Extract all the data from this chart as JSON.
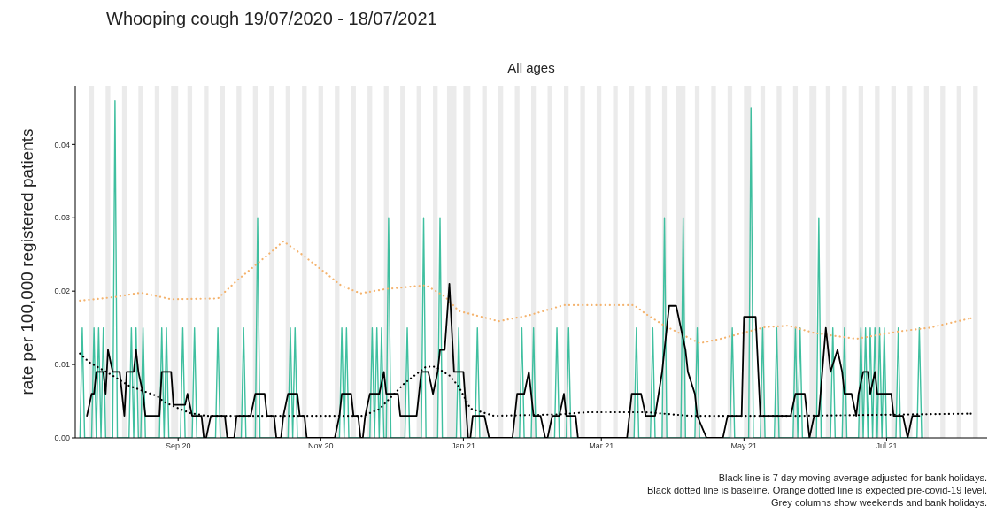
{
  "chart_data": {
    "type": "line",
    "title": "Whooping cough 19/07/2020 - 18/07/2021",
    "subtitle": "All ages",
    "ylabel": "rate per 100,000 registered patients",
    "annotations": [
      "Black line is 7 day moving average adjusted for bank holidays.",
      "Black dotted line is baseline. Orange dotted line is expected pre-covid-19 level.",
      "Grey columns show weekends and bank holidays."
    ],
    "xlim": [
      "2020-07-19",
      "2021-08-13"
    ],
    "xticks": [
      {
        "value": "2020-09-01",
        "label": "Sep 20"
      },
      {
        "value": "2020-11-01",
        "label": "Nov 20"
      },
      {
        "value": "2021-01-01",
        "label": "Jan 21"
      },
      {
        "value": "2021-03-01",
        "label": "Mar 21"
      },
      {
        "value": "2021-05-01",
        "label": "May 21"
      },
      {
        "value": "2021-07-01",
        "label": "Jul 21"
      }
    ],
    "ylim": [
      0,
      0.048
    ],
    "yticks": [
      {
        "value": 0,
        "label": "0.00"
      },
      {
        "value": 0.01,
        "label": "0.01"
      },
      {
        "value": 0.02,
        "label": "0.02"
      },
      {
        "value": 0.03,
        "label": "0.03"
      },
      {
        "value": 0.04,
        "label": "0.04"
      }
    ],
    "marker": "none",
    "series": [
      {
        "color": "#3fbf9f",
        "line_style": "solid",
        "x": [
          "2020-07-21",
          "2020-07-22",
          "2020-07-23",
          "2020-07-26",
          "2020-07-27",
          "2020-07-28",
          "2020-07-29",
          "2020-07-30",
          "2020-07-31",
          "2020-08-01",
          "2020-08-04",
          "2020-08-05",
          "2020-08-06",
          "2020-08-11",
          "2020-08-12",
          "2020-08-13",
          "2020-08-14",
          "2020-08-15",
          "2020-08-16",
          "2020-08-17",
          "2020-08-18",
          "2020-08-24",
          "2020-08-25",
          "2020-08-26",
          "2020-08-27",
          "2020-08-28",
          "2020-09-02",
          "2020-09-03",
          "2020-09-04",
          "2020-09-07",
          "2020-09-08",
          "2020-09-09",
          "2020-09-17",
          "2020-09-18",
          "2020-09-19",
          "2020-09-28",
          "2020-09-29",
          "2020-09-30",
          "2020-10-04",
          "2020-10-05",
          "2020-10-06",
          "2020-10-18",
          "2020-10-19",
          "2020-10-20",
          "2020-10-21",
          "2020-10-22",
          "2020-11-09",
          "2020-11-10",
          "2020-11-11",
          "2020-11-12",
          "2020-11-13",
          "2020-11-22",
          "2020-11-23",
          "2020-11-24",
          "2020-11-25",
          "2020-11-26",
          "2020-11-27",
          "2020-11-28",
          "2020-11-29",
          "2020-11-30",
          "2020-12-01",
          "2020-12-07",
          "2020-12-08",
          "2020-12-09",
          "2020-12-14",
          "2020-12-15",
          "2020-12-16",
          "2020-12-21",
          "2020-12-22",
          "2020-12-23",
          "2020-12-29",
          "2020-12-30",
          "2020-12-31",
          "2021-01-06",
          "2021-01-07",
          "2021-01-08",
          "2021-01-25",
          "2021-01-26",
          "2021-01-27",
          "2021-01-30",
          "2021-01-31",
          "2021-02-01",
          "2021-02-09",
          "2021-02-10",
          "2021-02-11",
          "2021-02-14",
          "2021-02-15",
          "2021-02-16",
          "2021-03-15",
          "2021-03-16",
          "2021-03-17",
          "2021-03-22",
          "2021-03-23",
          "2021-03-24",
          "2021-03-27",
          "2021-03-28",
          "2021-03-29",
          "2021-04-04",
          "2021-04-05",
          "2021-04-06",
          "2021-04-10",
          "2021-04-11",
          "2021-04-12",
          "2021-04-25",
          "2021-04-26",
          "2021-04-27",
          "2021-05-03",
          "2021-05-04",
          "2021-05-05",
          "2021-05-08",
          "2021-05-09",
          "2021-05-10",
          "2021-05-14",
          "2021-05-15",
          "2021-05-16",
          "2021-05-22",
          "2021-05-23",
          "2021-05-24",
          "2021-05-25",
          "2021-05-26",
          "2021-06-01",
          "2021-06-02",
          "2021-06-03",
          "2021-06-07",
          "2021-06-08",
          "2021-06-09",
          "2021-06-12",
          "2021-06-13",
          "2021-06-14",
          "2021-06-19",
          "2021-06-20",
          "2021-06-21",
          "2021-06-22",
          "2021-06-23",
          "2021-06-24",
          "2021-06-25",
          "2021-06-26",
          "2021-06-27",
          "2021-06-28",
          "2021-06-29",
          "2021-06-30",
          "2021-07-01",
          "2021-07-05",
          "2021-07-06",
          "2021-07-07",
          "2021-07-14",
          "2021-07-15",
          "2021-07-16"
        ],
        "values": [
          0,
          0.015,
          0,
          0,
          0.015,
          0,
          0.015,
          0,
          0.015,
          0,
          0,
          0.046,
          0,
          0,
          0.015,
          0,
          0.015,
          0,
          0,
          0.015,
          0,
          0,
          0.015,
          0,
          0.015,
          0,
          0,
          0.015,
          0,
          0,
          0.015,
          0,
          0,
          0.015,
          0,
          0,
          0.015,
          0,
          0,
          0.03,
          0,
          0,
          0.015,
          0,
          0.015,
          0,
          0,
          0.015,
          0,
          0.015,
          0,
          0,
          0.015,
          0,
          0.015,
          0,
          0.015,
          0,
          0,
          0.03,
          0,
          0,
          0.015,
          0,
          0,
          0.03,
          0,
          0,
          0.03,
          0,
          0,
          0.015,
          0,
          0,
          0.015,
          0,
          0,
          0.015,
          0,
          0,
          0.015,
          0,
          0,
          0.015,
          0,
          0,
          0.015,
          0,
          0,
          0.015,
          0,
          0,
          0.015,
          0,
          0,
          0.03,
          0,
          0,
          0.03,
          0,
          0,
          0.015,
          0,
          0,
          0.015,
          0,
          0,
          0.045,
          0,
          0,
          0.015,
          0,
          0,
          0.015,
          0,
          0,
          0.015,
          0,
          0.015,
          0,
          0,
          0.03,
          0,
          0,
          0.015,
          0,
          0,
          0.015,
          0,
          0,
          0.015,
          0,
          0.015,
          0,
          0.015,
          0,
          0.015,
          0,
          0.015,
          0,
          0.015,
          0,
          0,
          0.015,
          0,
          0,
          0.015,
          0
        ]
      },
      {
        "color": "#f4b36e",
        "line_style": "dotted",
        "x": [
          "2020-07-21",
          "2020-08-05",
          "2020-08-16",
          "2020-08-29",
          "2020-09-18",
          "2020-09-26",
          "2020-10-11",
          "2020-10-16",
          "2020-10-24",
          "2020-11-01",
          "2020-11-10",
          "2020-11-18",
          "2020-11-29",
          "2020-12-16",
          "2020-12-24",
          "2020-12-30",
          "2021-01-16",
          "2021-01-29",
          "2021-02-13",
          "2021-03-15",
          "2021-03-20",
          "2021-03-28",
          "2021-04-12",
          "2021-04-21",
          "2021-05-10",
          "2021-05-20",
          "2021-05-31",
          "2021-06-18",
          "2021-07-06",
          "2021-07-19",
          "2021-08-06"
        ],
        "values": [
          0.0187,
          0.0192,
          0.0198,
          0.0189,
          0.019,
          0.0214,
          0.0254,
          0.0268,
          0.025,
          0.023,
          0.0207,
          0.0197,
          0.0203,
          0.0208,
          0.0193,
          0.0173,
          0.0159,
          0.0167,
          0.0181,
          0.0181,
          0.0169,
          0.0153,
          0.0129,
          0.0135,
          0.0151,
          0.0153,
          0.0143,
          0.0135,
          0.0145,
          0.015,
          0.0163
        ]
      },
      {
        "color": "#000000",
        "line_style": "dotted",
        "x": [
          "2020-07-21",
          "2020-07-25",
          "2020-08-04",
          "2020-08-11",
          "2020-08-23",
          "2020-08-26",
          "2020-09-02",
          "2020-09-06",
          "2020-09-13",
          "2020-11-19",
          "2020-11-26",
          "2020-12-07",
          "2020-12-16",
          "2020-12-20",
          "2020-12-26",
          "2020-12-30",
          "2021-01-04",
          "2021-01-14",
          "2021-02-11",
          "2021-02-23",
          "2021-03-20",
          "2021-04-08",
          "2021-05-24",
          "2021-08-06"
        ],
        "values": [
          0.0115,
          0.0103,
          0.0085,
          0.0071,
          0.0057,
          0.0049,
          0.0039,
          0.0034,
          0.003,
          0.003,
          0.0039,
          0.0075,
          0.0097,
          0.0097,
          0.0085,
          0.007,
          0.004,
          0.003,
          0.0032,
          0.0035,
          0.0035,
          0.003,
          0.003,
          0.0033
        ]
      },
      {
        "color": "#000000",
        "line_style": "solid",
        "x": [
          "2020-07-24",
          "2020-07-26",
          "2020-07-27",
          "2020-07-28",
          "2020-07-31",
          "2020-08-01",
          "2020-08-02",
          "2020-08-04",
          "2020-08-07",
          "2020-08-09",
          "2020-08-10",
          "2020-08-13",
          "2020-08-14",
          "2020-08-15",
          "2020-08-17",
          "2020-08-18",
          "2020-08-24",
          "2020-08-25",
          "2020-08-29",
          "2020-08-30",
          "2020-09-04",
          "2020-09-05",
          "2020-09-07",
          "2020-09-11",
          "2020-09-12",
          "2020-09-13",
          "2020-09-15",
          "2020-09-21",
          "2020-09-22",
          "2020-09-25",
          "2020-09-26",
          "2020-10-02",
          "2020-10-04",
          "2020-10-08",
          "2020-10-09",
          "2020-10-12",
          "2020-10-13",
          "2020-10-15",
          "2020-10-16",
          "2020-10-18",
          "2020-10-22",
          "2020-10-23",
          "2020-10-25",
          "2020-10-26",
          "2020-11-07",
          "2020-11-09",
          "2020-11-10",
          "2020-11-14",
          "2020-11-15",
          "2020-11-17",
          "2020-11-18",
          "2020-11-19",
          "2020-11-20",
          "2020-11-22",
          "2020-11-26",
          "2020-11-28",
          "2020-11-29",
          "2020-12-04",
          "2020-12-05",
          "2020-12-12",
          "2020-12-14",
          "2020-12-17",
          "2020-12-19",
          "2020-12-21",
          "2020-12-22",
          "2020-12-24",
          "2020-12-26",
          "2020-12-28",
          "2021-01-01",
          "2021-01-03",
          "2021-01-04",
          "2021-01-05",
          "2021-01-10",
          "2021-01-12",
          "2021-01-22",
          "2021-01-24",
          "2021-01-27",
          "2021-01-29",
          "2021-01-31",
          "2021-02-03",
          "2021-02-05",
          "2021-02-06",
          "2021-02-08",
          "2021-02-11",
          "2021-02-13",
          "2021-02-14",
          "2021-02-18",
          "2021-02-19",
          "2021-03-12",
          "2021-03-14",
          "2021-03-18",
          "2021-03-20",
          "2021-03-24",
          "2021-03-27",
          "2021-03-30",
          "2021-04-02",
          "2021-04-06",
          "2021-04-07",
          "2021-04-10",
          "2021-04-11",
          "2021-04-15",
          "2021-04-22",
          "2021-04-24",
          "2021-04-30",
          "2021-05-01",
          "2021-05-06",
          "2021-05-08",
          "2021-05-21",
          "2021-05-23",
          "2021-05-27",
          "2021-05-29",
          "2021-05-31",
          "2021-06-02",
          "2021-06-05",
          "2021-06-07",
          "2021-06-10",
          "2021-06-12",
          "2021-06-13",
          "2021-06-16",
          "2021-06-18",
          "2021-06-19",
          "2021-06-21",
          "2021-06-23",
          "2021-06-24",
          "2021-06-26",
          "2021-06-27",
          "2021-07-03",
          "2021-07-04",
          "2021-07-08",
          "2021-07-10",
          "2021-07-12",
          "2021-07-15"
        ],
        "values": [
          0.003,
          0.006,
          0.006,
          0.009,
          0.009,
          0.006,
          0.012,
          0.009,
          0.009,
          0.003,
          0.009,
          0.009,
          0.012,
          0.009,
          0.006,
          0.003,
          0.003,
          0.009,
          0.009,
          0.0045,
          0.0045,
          0.006,
          0.003,
          0.003,
          0,
          0,
          0.003,
          0.003,
          0,
          0,
          0.003,
          0.003,
          0.006,
          0.006,
          0.003,
          0.003,
          0,
          0,
          0.003,
          0.006,
          0.006,
          0.003,
          0.003,
          0,
          0,
          0.003,
          0.006,
          0.006,
          0.003,
          0.003,
          0,
          0,
          0.003,
          0.006,
          0.006,
          0.009,
          0.006,
          0.006,
          0.003,
          0.003,
          0.009,
          0.009,
          0.006,
          0.009,
          0.012,
          0.012,
          0.021,
          0.009,
          0.009,
          0,
          0,
          0.003,
          0.003,
          0,
          0,
          0.006,
          0.006,
          0.009,
          0.003,
          0.003,
          0,
          0,
          0.003,
          0.003,
          0.006,
          0.003,
          0.003,
          0,
          0,
          0.006,
          0.006,
          0.003,
          0.003,
          0.009,
          0.018,
          0.018,
          0.012,
          0.009,
          0.006,
          0.003,
          0,
          0,
          0.003,
          0.003,
          0.0165,
          0.0165,
          0.003,
          0.003,
          0.006,
          0.006,
          0,
          0.003,
          0.003,
          0.015,
          0.009,
          0.012,
          0.009,
          0.006,
          0.006,
          0.003,
          0.006,
          0.009,
          0.009,
          0.006,
          0.009,
          0.006,
          0.006,
          0.003,
          0.003,
          0,
          0.003,
          0.003
        ]
      }
    ],
    "bands": [
      {
        "axis": "x",
        "from": "2020-07-25",
        "to": "2020-07-27",
        "color": "#ebebeb"
      },
      {
        "axis": "x",
        "from": "2020-08-01",
        "to": "2020-08-03",
        "color": "#ebebeb"
      },
      {
        "axis": "x",
        "from": "2020-08-08",
        "to": "2020-08-10",
        "color": "#ebebeb"
      },
      {
        "axis": "x",
        "from": "2020-08-15",
        "to": "2020-08-17",
        "color": "#ebebeb"
      },
      {
        "axis": "x",
        "from": "2020-08-22",
        "to": "2020-08-24",
        "color": "#ebebeb"
      },
      {
        "axis": "x",
        "from": "2020-08-29",
        "to": "2020-09-01",
        "color": "#ebebeb"
      },
      {
        "axis": "x",
        "from": "2020-09-05",
        "to": "2020-09-07",
        "color": "#ebebeb"
      },
      {
        "axis": "x",
        "from": "2020-09-12",
        "to": "2020-09-14",
        "color": "#ebebeb"
      },
      {
        "axis": "x",
        "from": "2020-09-19",
        "to": "2020-09-21",
        "color": "#ebebeb"
      },
      {
        "axis": "x",
        "from": "2020-09-26",
        "to": "2020-09-28",
        "color": "#ebebeb"
      },
      {
        "axis": "x",
        "from": "2020-10-03",
        "to": "2020-10-05",
        "color": "#ebebeb"
      },
      {
        "axis": "x",
        "from": "2020-10-10",
        "to": "2020-10-12",
        "color": "#ebebeb"
      },
      {
        "axis": "x",
        "from": "2020-10-17",
        "to": "2020-10-19",
        "color": "#ebebeb"
      },
      {
        "axis": "x",
        "from": "2020-10-24",
        "to": "2020-10-26",
        "color": "#ebebeb"
      },
      {
        "axis": "x",
        "from": "2020-10-31",
        "to": "2020-11-02",
        "color": "#ebebeb"
      },
      {
        "axis": "x",
        "from": "2020-11-07",
        "to": "2020-11-09",
        "color": "#ebebeb"
      },
      {
        "axis": "x",
        "from": "2020-11-14",
        "to": "2020-11-16",
        "color": "#ebebeb"
      },
      {
        "axis": "x",
        "from": "2020-11-21",
        "to": "2020-11-23",
        "color": "#ebebeb"
      },
      {
        "axis": "x",
        "from": "2020-11-28",
        "to": "2020-11-30",
        "color": "#ebebeb"
      },
      {
        "axis": "x",
        "from": "2020-12-05",
        "to": "2020-12-07",
        "color": "#ebebeb"
      },
      {
        "axis": "x",
        "from": "2020-12-12",
        "to": "2020-12-14",
        "color": "#ebebeb"
      },
      {
        "axis": "x",
        "from": "2020-12-19",
        "to": "2020-12-21",
        "color": "#ebebeb"
      },
      {
        "axis": "x",
        "from": "2020-12-25",
        "to": "2020-12-29",
        "color": "#ebebeb"
      },
      {
        "axis": "x",
        "from": "2021-01-01",
        "to": "2021-01-04",
        "color": "#ebebeb"
      },
      {
        "axis": "x",
        "from": "2021-01-09",
        "to": "2021-01-11",
        "color": "#ebebeb"
      },
      {
        "axis": "x",
        "from": "2021-01-16",
        "to": "2021-01-18",
        "color": "#ebebeb"
      },
      {
        "axis": "x",
        "from": "2021-01-23",
        "to": "2021-01-25",
        "color": "#ebebeb"
      },
      {
        "axis": "x",
        "from": "2021-01-30",
        "to": "2021-02-01",
        "color": "#ebebeb"
      },
      {
        "axis": "x",
        "from": "2021-02-06",
        "to": "2021-02-08",
        "color": "#ebebeb"
      },
      {
        "axis": "x",
        "from": "2021-02-13",
        "to": "2021-02-15",
        "color": "#ebebeb"
      },
      {
        "axis": "x",
        "from": "2021-02-20",
        "to": "2021-02-22",
        "color": "#ebebeb"
      },
      {
        "axis": "x",
        "from": "2021-02-27",
        "to": "2021-03-01",
        "color": "#ebebeb"
      },
      {
        "axis": "x",
        "from": "2021-03-06",
        "to": "2021-03-08",
        "color": "#ebebeb"
      },
      {
        "axis": "x",
        "from": "2021-03-13",
        "to": "2021-03-15",
        "color": "#ebebeb"
      },
      {
        "axis": "x",
        "from": "2021-03-20",
        "to": "2021-03-22",
        "color": "#ebebeb"
      },
      {
        "axis": "x",
        "from": "2021-03-27",
        "to": "2021-03-29",
        "color": "#ebebeb"
      },
      {
        "axis": "x",
        "from": "2021-04-02",
        "to": "2021-04-06",
        "color": "#ebebeb"
      },
      {
        "axis": "x",
        "from": "2021-04-10",
        "to": "2021-04-12",
        "color": "#ebebeb"
      },
      {
        "axis": "x",
        "from": "2021-04-17",
        "to": "2021-04-19",
        "color": "#ebebeb"
      },
      {
        "axis": "x",
        "from": "2021-04-24",
        "to": "2021-04-26",
        "color": "#ebebeb"
      },
      {
        "axis": "x",
        "from": "2021-05-01",
        "to": "2021-05-04",
        "color": "#ebebeb"
      },
      {
        "axis": "x",
        "from": "2021-05-08",
        "to": "2021-05-10",
        "color": "#ebebeb"
      },
      {
        "axis": "x",
        "from": "2021-05-15",
        "to": "2021-05-17",
        "color": "#ebebeb"
      },
      {
        "axis": "x",
        "from": "2021-05-22",
        "to": "2021-05-24",
        "color": "#ebebeb"
      },
      {
        "axis": "x",
        "from": "2021-05-29",
        "to": "2021-06-01",
        "color": "#ebebeb"
      },
      {
        "axis": "x",
        "from": "2021-06-05",
        "to": "2021-06-07",
        "color": "#ebebeb"
      },
      {
        "axis": "x",
        "from": "2021-06-12",
        "to": "2021-06-14",
        "color": "#ebebeb"
      },
      {
        "axis": "x",
        "from": "2021-06-19",
        "to": "2021-06-21",
        "color": "#ebebeb"
      },
      {
        "axis": "x",
        "from": "2021-06-26",
        "to": "2021-06-28",
        "color": "#ebebeb"
      },
      {
        "axis": "x",
        "from": "2021-07-03",
        "to": "2021-07-05",
        "color": "#ebebeb"
      },
      {
        "axis": "x",
        "from": "2021-07-10",
        "to": "2021-07-12",
        "color": "#ebebeb"
      },
      {
        "axis": "x",
        "from": "2021-07-17",
        "to": "2021-07-19",
        "color": "#ebebeb"
      },
      {
        "axis": "x",
        "from": "2021-07-24",
        "to": "2021-07-26",
        "color": "#ebebeb"
      },
      {
        "axis": "x",
        "from": "2021-07-31",
        "to": "2021-08-02",
        "color": "#ebebeb"
      },
      {
        "axis": "x",
        "from": "2021-08-07",
        "to": "2021-08-09",
        "color": "#ebebeb"
      }
    ]
  }
}
